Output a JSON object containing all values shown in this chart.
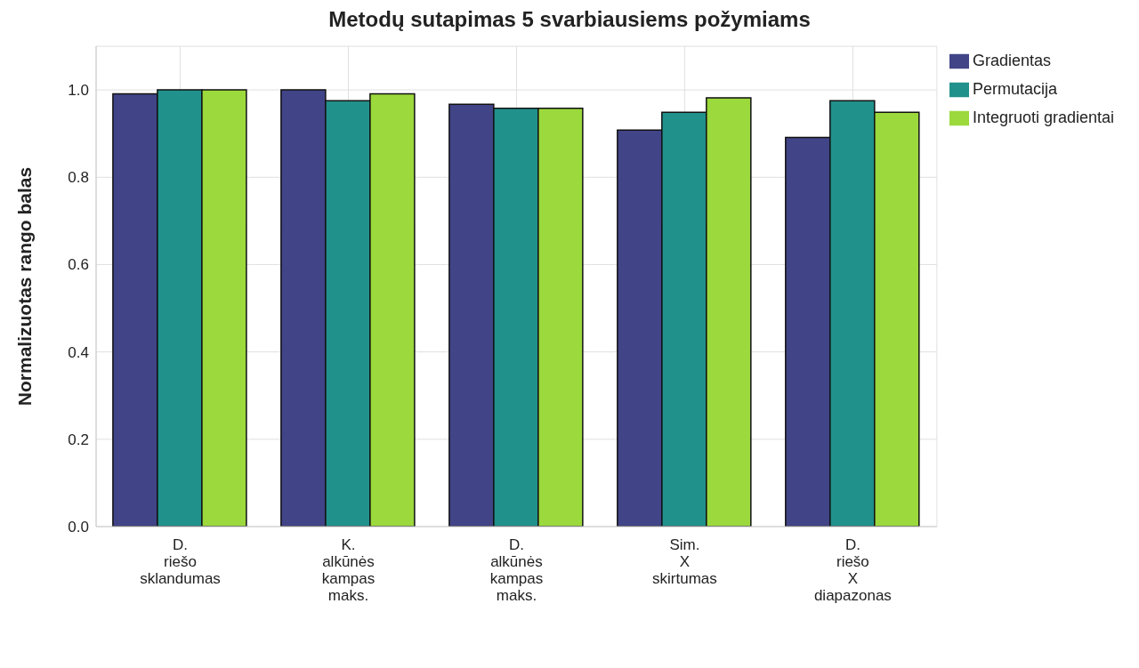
{
  "chart_data": {
    "type": "bar",
    "title": "Metodų sutapimas 5 svarbiausiems požymiams",
    "ylabel": "Normalizuotas rango balas",
    "categories": [
      "D.\nriešo\nsklandumas",
      "K.\nalkūnės\nkampas\nmaks.",
      "D.\nalkūnės\nkampas\nmaks.",
      "Sim.\nX\nskirtumas",
      "D.\nriešo\nX\ndiapazonas"
    ],
    "series": [
      {
        "name": "Gradientas",
        "color": "#414487",
        "values": [
          0.991,
          1.0,
          0.967,
          0.908,
          0.891
        ]
      },
      {
        "name": "Permutacija",
        "color": "#21918c",
        "values": [
          1.0,
          0.975,
          0.958,
          0.949,
          0.975
        ]
      },
      {
        "name": "Integruoti gradientai",
        "color": "#9bd93c",
        "values": [
          1.0,
          0.991,
          0.958,
          0.982,
          0.949
        ]
      }
    ],
    "ylim": [
      0,
      1.1
    ],
    "yticks": [
      {
        "value": 0,
        "label": "0.0"
      },
      0.2,
      0.4,
      0.6,
      0.8,
      {
        "value": 1,
        "label": "1.0"
      }
    ],
    "grid": true,
    "legend": "right"
  }
}
